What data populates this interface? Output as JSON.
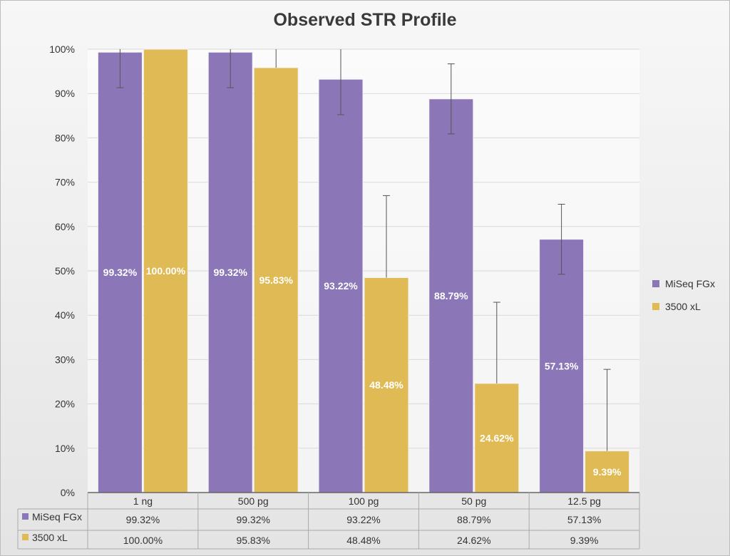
{
  "chart_data": {
    "type": "bar",
    "title": "Observed STR Profile",
    "categories": [
      "1 ng",
      "500 pg",
      "100 pg",
      "50 pg",
      "12.5 pg"
    ],
    "ylim": [
      0,
      100
    ],
    "yticks": [
      "0%",
      "10%",
      "20%",
      "30%",
      "40%",
      "50%",
      "60%",
      "70%",
      "80%",
      "90%",
      "100%"
    ],
    "grid": true,
    "legend_position": "right",
    "data_table": true,
    "series": [
      {
        "name": "MiSeq FGx",
        "color": "#8b77b8",
        "values": [
          99.32,
          99.32,
          93.22,
          88.79,
          57.13
        ],
        "labels": [
          "99.32%",
          "99.32%",
          "93.22%",
          "88.79%",
          "57.13%"
        ],
        "error": [
          8,
          8,
          8,
          7.9,
          7.9
        ],
        "error_direction": "both"
      },
      {
        "name": "3500 xL",
        "color": "#e0bb55",
        "values": [
          100.0,
          95.83,
          48.48,
          24.62,
          9.39
        ],
        "labels": [
          "100.00%",
          "95.83%",
          "48.48%",
          "24.62%",
          "9.39%"
        ],
        "error": [
          0,
          18.4,
          18.5,
          18.3,
          18.4
        ],
        "error_direction": "plus"
      }
    ]
  }
}
